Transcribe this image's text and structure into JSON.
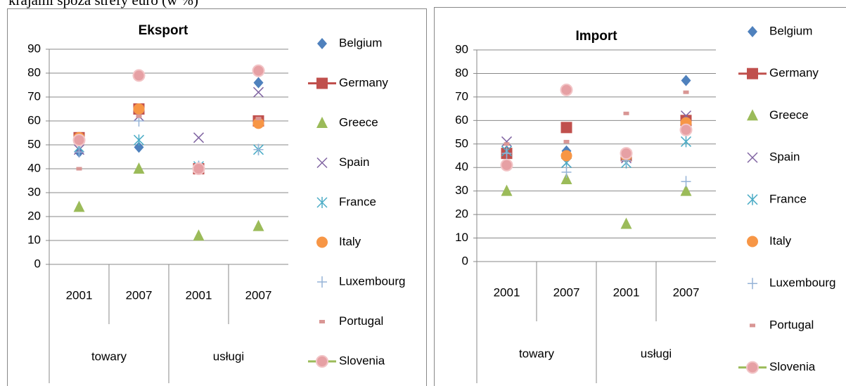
{
  "header": {
    "text": "krajami spoza strefy euro (w %)"
  },
  "chart_data": [
    {
      "type": "scatter",
      "title": "Eksport",
      "categories": [
        "2001",
        "2007",
        "2001",
        "2007"
      ],
      "groups": [
        "towary",
        "usługi"
      ],
      "ylim": [
        0,
        90
      ],
      "yticks": [
        0,
        10,
        20,
        30,
        40,
        50,
        60,
        70,
        80,
        90
      ],
      "grid": true,
      "legend": "right",
      "series": [
        {
          "name": "Belgium",
          "color": "#4f81bd",
          "marker": "diamond",
          "values": [
            47,
            49,
            40,
            76
          ]
        },
        {
          "name": "Germany",
          "color": "#c0504d",
          "marker": "square",
          "values": [
            53,
            65,
            40,
            60
          ]
        },
        {
          "name": "Greece",
          "color": "#9bbb59",
          "marker": "triangle",
          "values": [
            24,
            40,
            12,
            16
          ]
        },
        {
          "name": "Spain",
          "color": "#8064a2",
          "marker": "x",
          "values": [
            48,
            62,
            53,
            72
          ]
        },
        {
          "name": "France",
          "color": "#4bacc6",
          "marker": "star",
          "values": [
            49,
            52,
            41,
            48
          ]
        },
        {
          "name": "Italy",
          "color": "#f79646",
          "marker": "circle",
          "values": [
            53,
            65,
            40,
            59
          ]
        },
        {
          "name": "Luxembourg",
          "color": "#95b3d7",
          "marker": "plus",
          "values": [
            47,
            60,
            41,
            48
          ]
        },
        {
          "name": "Portugal",
          "color": "#d99694",
          "marker": "dash",
          "values": [
            40,
            62,
            40,
            61
          ]
        },
        {
          "name": "Slovenia",
          "color": "#e6a0a4",
          "marker": "ring",
          "values": [
            52,
            79,
            40,
            81
          ]
        }
      ]
    },
    {
      "type": "scatter",
      "title": "Import",
      "categories": [
        "2001",
        "2007",
        "2001",
        "2007"
      ],
      "groups": [
        "towary",
        "usługi"
      ],
      "ylim": [
        0,
        90
      ],
      "yticks": [
        0,
        10,
        20,
        30,
        40,
        50,
        60,
        70,
        80,
        90
      ],
      "grid": true,
      "legend": "right",
      "series": [
        {
          "name": "Belgium",
          "color": "#4f81bd",
          "marker": "diamond",
          "values": [
            47,
            47,
            45,
            77
          ]
        },
        {
          "name": "Germany",
          "color": "#c0504d",
          "marker": "square",
          "values": [
            46,
            57,
            45,
            60
          ]
        },
        {
          "name": "Greece",
          "color": "#9bbb59",
          "marker": "triangle",
          "values": [
            30,
            35,
            16,
            30
          ]
        },
        {
          "name": "Spain",
          "color": "#8064a2",
          "marker": "x",
          "values": [
            51,
            42,
            44,
            62
          ]
        },
        {
          "name": "France",
          "color": "#4bacc6",
          "marker": "star",
          "values": [
            47,
            42,
            42,
            51
          ]
        },
        {
          "name": "Italy",
          "color": "#f79646",
          "marker": "circle",
          "values": [
            41,
            45,
            45,
            59
          ]
        },
        {
          "name": "Luxembourg",
          "color": "#95b3d7",
          "marker": "plus",
          "values": [
            46,
            38,
            43,
            34
          ]
        },
        {
          "name": "Portugal",
          "color": "#d99694",
          "marker": "dash",
          "values": [
            50,
            51,
            63,
            72
          ]
        },
        {
          "name": "Slovenia",
          "color": "#e6a0a4",
          "marker": "ring",
          "values": [
            41,
            73,
            46,
            56
          ]
        }
      ]
    }
  ]
}
